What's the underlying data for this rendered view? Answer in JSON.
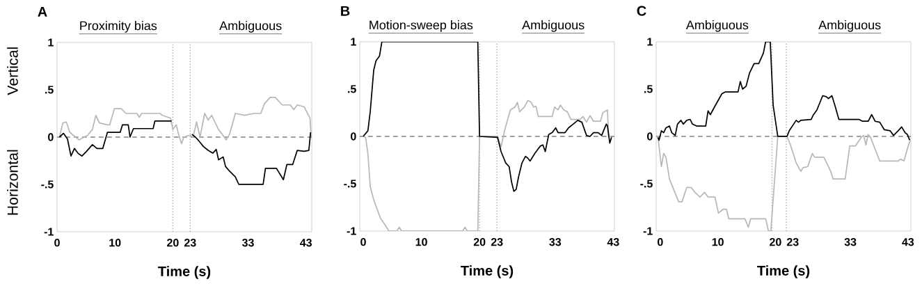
{
  "chart_data": [
    {
      "type": "line",
      "title": "A",
      "xlabel": "Time (s)",
      "annotations": [
        "Proximity bias",
        "Ambiguous",
        "Vertical",
        "Horizontal"
      ],
      "xlim": [
        0,
        44
      ],
      "ylim": [
        -1,
        1
      ],
      "xticks": [
        0,
        10,
        20,
        23,
        33,
        43
      ],
      "yticks": [
        {
          "value": 1,
          "label": "1"
        },
        {
          "value": 0.5,
          "label": ".5"
        },
        {
          "value": 0,
          "label": "0"
        },
        {
          "value": -0.5,
          "label": "-.5"
        },
        {
          "value": -1,
          "label": "-1"
        }
      ],
      "ref_lines": [
        {
          "axis": "y",
          "value": 0,
          "color": "#808080",
          "line_style": "dashed"
        },
        {
          "axis": "x",
          "value": 20,
          "color": "#a0a0a0",
          "line_style": "dotted"
        },
        {
          "axis": "x",
          "value": 23,
          "color": "#a0a0a0",
          "line_style": "dotted"
        }
      ],
      "series": [
        {
          "color": "#b8b8b8",
          "x": [
            0.4,
            1.0,
            1.6,
            2.2,
            2.8,
            3.8,
            5.3,
            6.1,
            6.7,
            7.3,
            8.7,
            9.1,
            9.9,
            11.1,
            11.9,
            13.8,
            14.2,
            14.6,
            17.8,
            18.2,
            19.6,
            20.0,
            20.6,
            20.9,
            21.5,
            21.9,
            22.9,
            23.5,
            24.1,
            24.7,
            25.5,
            26.1,
            26.7,
            27.9,
            28.9,
            29.2,
            29.8,
            30.8,
            32.4,
            34.0,
            35.2,
            35.8,
            36.8,
            37.7,
            38.9,
            40.3,
            40.9,
            41.5,
            42.7,
            43.1,
            43.7,
            43.9
          ],
          "values": [
            0.0,
            0.15,
            0.16,
            0.05,
            0.02,
            -0.03,
            0.02,
            0.08,
            0.23,
            0.15,
            0.13,
            0.13,
            0.3,
            0.3,
            0.25,
            0.25,
            0.21,
            0.25,
            0.25,
            0.23,
            0.2,
            0.08,
            0.13,
            0.05,
            -0.07,
            0.0,
            0.02,
            0.0,
            0.16,
            0.0,
            0.25,
            0.18,
            0.23,
            0.08,
            0.0,
            -0.03,
            0.03,
            0.25,
            0.23,
            0.25,
            0.25,
            0.35,
            0.42,
            0.42,
            0.34,
            0.34,
            0.29,
            0.34,
            0.32,
            0.27,
            0.2,
            0.0
          ]
        },
        {
          "color": "#000000",
          "x": [
            0.4,
            1.1,
            1.8,
            2.4,
            3.0,
            3.6,
            4.3,
            5.1,
            6.1,
            6.9,
            7.9,
            8.7,
            10.9,
            11.3,
            12.3,
            12.6,
            13.2,
            16.6,
            16.9,
            19.8,
            21.5,
            23.3,
            23.9,
            24.5,
            25.3,
            26.1,
            26.9,
            27.5,
            27.9,
            28.7,
            29.1,
            29.8,
            30.8,
            31.4,
            35.6,
            36.0,
            37.9,
            39.1,
            39.7,
            40.7,
            41.5,
            42.7,
            43.5,
            43.8
          ],
          "values": [
            0,
            0.04,
            -0.02,
            -0.2,
            -0.12,
            -0.17,
            -0.2,
            -0.15,
            -0.08,
            -0.12,
            -0.12,
            0.05,
            0.05,
            0.13,
            0.13,
            0,
            0.09,
            0.09,
            0.17,
            0.17,
            null,
            0.03,
            0,
            -0.04,
            -0.1,
            -0.14,
            -0.17,
            -0.13,
            -0.24,
            -0.21,
            -0.31,
            -0.36,
            -0.42,
            -0.5,
            -0.5,
            -0.33,
            -0.33,
            -0.45,
            -0.29,
            -0.29,
            -0.14,
            -0.15,
            -0.14,
            0.05
          ]
        }
      ]
    },
    {
      "type": "line",
      "title": "B",
      "xlabel": "Time (s)",
      "annotations": [
        "Motion-sweep bias",
        "Ambiguous"
      ],
      "xlim": [
        -0.6,
        43.2
      ],
      "ylim": [
        -1,
        1
      ],
      "xticks": [
        0,
        10,
        20,
        23,
        33,
        43
      ],
      "yticks": [
        {
          "value": 1,
          "label": "1"
        },
        {
          "value": 0.5,
          "label": ".5"
        },
        {
          "value": 0,
          "label": "0"
        },
        {
          "value": -0.5,
          "label": "-.5"
        },
        {
          "value": -1,
          "label": "-1"
        }
      ],
      "ref_lines": [
        {
          "axis": "y",
          "value": 0,
          "color": "#808080",
          "line_style": "dashed"
        },
        {
          "axis": "x",
          "value": 20,
          "color": "#a0a0a0",
          "line_style": "dotted"
        },
        {
          "axis": "x",
          "value": 23,
          "color": "#a0a0a0",
          "line_style": "dotted"
        }
      ],
      "series": [
        {
          "color": "#b8b8b8",
          "x": [
            0,
            0.4,
            0.8,
            1.2,
            1.8,
            2.4,
            3.0,
            3.8,
            4.4,
            5.8,
            6.2,
            6.6,
            17.1,
            17.5,
            17.9,
            19.7,
            20.0,
            23.1,
            23.7,
            24.3,
            25.3,
            26.1,
            26.5,
            26.9,
            27.7,
            28.3,
            28.9,
            29.3,
            29.7,
            30.1,
            32.5,
            32.9,
            33.5,
            33.9,
            34.5,
            35.1,
            35.7,
            37.3,
            37.8,
            38.4,
            39.0,
            39.6,
            40.8,
            41.2,
            42.0,
            42.2
          ],
          "values": [
            0,
            -0.01,
            -0.18,
            -0.53,
            -0.67,
            -0.77,
            -0.87,
            -0.94,
            -1,
            -1,
            -0.96,
            -1,
            -1,
            -0.96,
            -1,
            -1,
            0,
            0,
            -0.11,
            0.06,
            0.28,
            0.31,
            0.36,
            0.26,
            0.31,
            0.38,
            0.36,
            0.31,
            0.32,
            0.21,
            0.21,
            0.31,
            0.28,
            0.33,
            0.28,
            0.26,
            0.18,
            0.18,
            0.21,
            0.15,
            0.22,
            0.16,
            0.16,
            0.25,
            0.28,
            0
          ]
        },
        {
          "color": "#000000",
          "x": [
            0,
            0.8,
            1.2,
            1.8,
            2.2,
            2.8,
            3.2,
            19.7,
            20.0,
            23.1,
            23.7,
            24.5,
            25.1,
            25.5,
            25.9,
            26.3,
            26.7,
            27.3,
            27.9,
            28.3,
            28.7,
            29.5,
            30.1,
            30.5,
            30.9,
            31.3,
            31.9,
            32.5,
            33.1,
            33.5,
            34.7,
            35.3,
            36.1,
            36.9,
            37.6,
            38.4,
            39.0,
            39.6,
            40.4,
            41.0,
            41.8,
            42.0,
            42.4,
            42.7
          ],
          "values": [
            0,
            0.06,
            0.26,
            0.7,
            0.8,
            0.85,
            1,
            1,
            0,
            -0.01,
            -0.16,
            -0.28,
            -0.32,
            -0.48,
            -0.58,
            -0.56,
            -0.43,
            -0.28,
            -0.21,
            -0.23,
            -0.26,
            -0.18,
            -0.13,
            -0.1,
            -0.09,
            -0.16,
            0.02,
            0.04,
            0.09,
            0.04,
            0.04,
            0.09,
            0.13,
            0.17,
            0.15,
            0.01,
            0,
            0.04,
            0.04,
            0.01,
            0.13,
            0.11,
            -0.07,
            -0.01
          ]
        }
      ]
    },
    {
      "type": "line",
      "title": "C",
      "xlabel": "Time (s)",
      "annotations": [
        "Ambiguous",
        "Ambiguous"
      ],
      "xlim": [
        -0.7,
        43.5
      ],
      "ylim": [
        -1,
        1
      ],
      "xticks": [
        0,
        10,
        20,
        23,
        33,
        43
      ],
      "yticks": [
        {
          "value": 1,
          "label": "1"
        },
        {
          "value": 0.5,
          "label": ".5"
        },
        {
          "value": 0,
          "label": "0"
        },
        {
          "value": -0.5,
          "label": "-.5"
        },
        {
          "value": -1,
          "label": "-1"
        }
      ],
      "ref_lines": [
        {
          "axis": "y",
          "value": 0,
          "color": "#808080",
          "line_style": "dashed"
        },
        {
          "axis": "x",
          "value": 19.4,
          "color": "#a0a0a0",
          "line_style": "dotted"
        },
        {
          "axis": "x",
          "value": 21.9,
          "color": "#a0a0a0",
          "line_style": "dotted"
        }
      ],
      "series": [
        {
          "color": "#b8b8b8",
          "x": [
            -0.4,
            0.2,
            0.6,
            1.0,
            1.6,
            2.6,
            3.2,
            3.8,
            4.6,
            5.4,
            6.0,
            6.9,
            7.7,
            8.3,
            9.5,
            10.1,
            10.9,
            11.5,
            11.9,
            14.7,
            15.3,
            15.7,
            18.3,
            18.8,
            19.2,
            20.4,
            22.0,
            22.6,
            23.6,
            24.4,
            24.8,
            25.6,
            26.0,
            26.4,
            26.8,
            28.4,
            29.6,
            30.0,
            32.1,
            32.9,
            33.9,
            34.9,
            35.3,
            35.7,
            36.1,
            36.5,
            38.1,
            39.9,
            41.3,
            41.7,
            42.3,
            43.1,
            43.4
          ],
          "values": [
            0,
            -0.32,
            -0.18,
            -0.22,
            -0.45,
            -0.6,
            -0.69,
            -0.69,
            -0.54,
            -0.54,
            -0.59,
            -0.64,
            -0.59,
            -0.64,
            -0.64,
            -0.81,
            -0.77,
            -0.77,
            -0.87,
            -0.87,
            -0.96,
            -0.87,
            -0.87,
            -1,
            -1,
            0,
            0,
            -0.09,
            -0.28,
            -0.37,
            -0.33,
            -0.32,
            -0.25,
            -0.18,
            -0.22,
            -0.22,
            -0.37,
            -0.45,
            -0.45,
            -0.1,
            -0.1,
            -0.01,
            0.01,
            -0.09,
            0.02,
            -0.01,
            -0.26,
            -0.26,
            -0.26,
            -0.24,
            -0.26,
            -0.09,
            -0.04
          ]
        },
        {
          "color": "#000000",
          "x": [
            -0.4,
            -0.2,
            0.2,
            0.6,
            1.0,
            1.6,
            2.0,
            2.6,
            3.0,
            3.6,
            4.0,
            4.6,
            5.2,
            5.6,
            6.3,
            7.9,
            8.3,
            8.7,
            9.5,
            10.7,
            11.3,
            13.5,
            13.9,
            14.3,
            14.9,
            15.5,
            16.3,
            17.1,
            17.9,
            18.3,
            19.1,
            19.6,
            20.4,
            22.0,
            22.4,
            23.6,
            24.0,
            24.4,
            26.2,
            26.6,
            27.2,
            28.2,
            28.8,
            29.2,
            29.8,
            30.4,
            31.0,
            34.5,
            35.1,
            36.1,
            36.7,
            37.3,
            38.1,
            38.9,
            39.9,
            40.5,
            41.3,
            41.9,
            42.5,
            42.9,
            43.3
          ],
          "values": [
            -0.01,
            -0.04,
            0.06,
            0.04,
            0.09,
            0.11,
            0.04,
            0.01,
            0.13,
            0.17,
            0.13,
            0.17,
            0.18,
            0.13,
            0.11,
            0.11,
            0.27,
            0.23,
            0.32,
            0.45,
            0.47,
            0.47,
            0.58,
            0.5,
            0.53,
            0.67,
            0.77,
            0.77,
            0.88,
            1,
            1,
            0.33,
            0,
            0,
            0.06,
            0.17,
            0.15,
            0.17,
            0.18,
            0.23,
            0.28,
            0.43,
            0.42,
            0.4,
            0.43,
            0.31,
            0.18,
            0.18,
            0.16,
            0.16,
            0.23,
            0.16,
            0.15,
            0.07,
            0.06,
            0.01,
            0.06,
            0.1,
            0.04,
            0.02,
            -0.04
          ]
        }
      ]
    }
  ]
}
